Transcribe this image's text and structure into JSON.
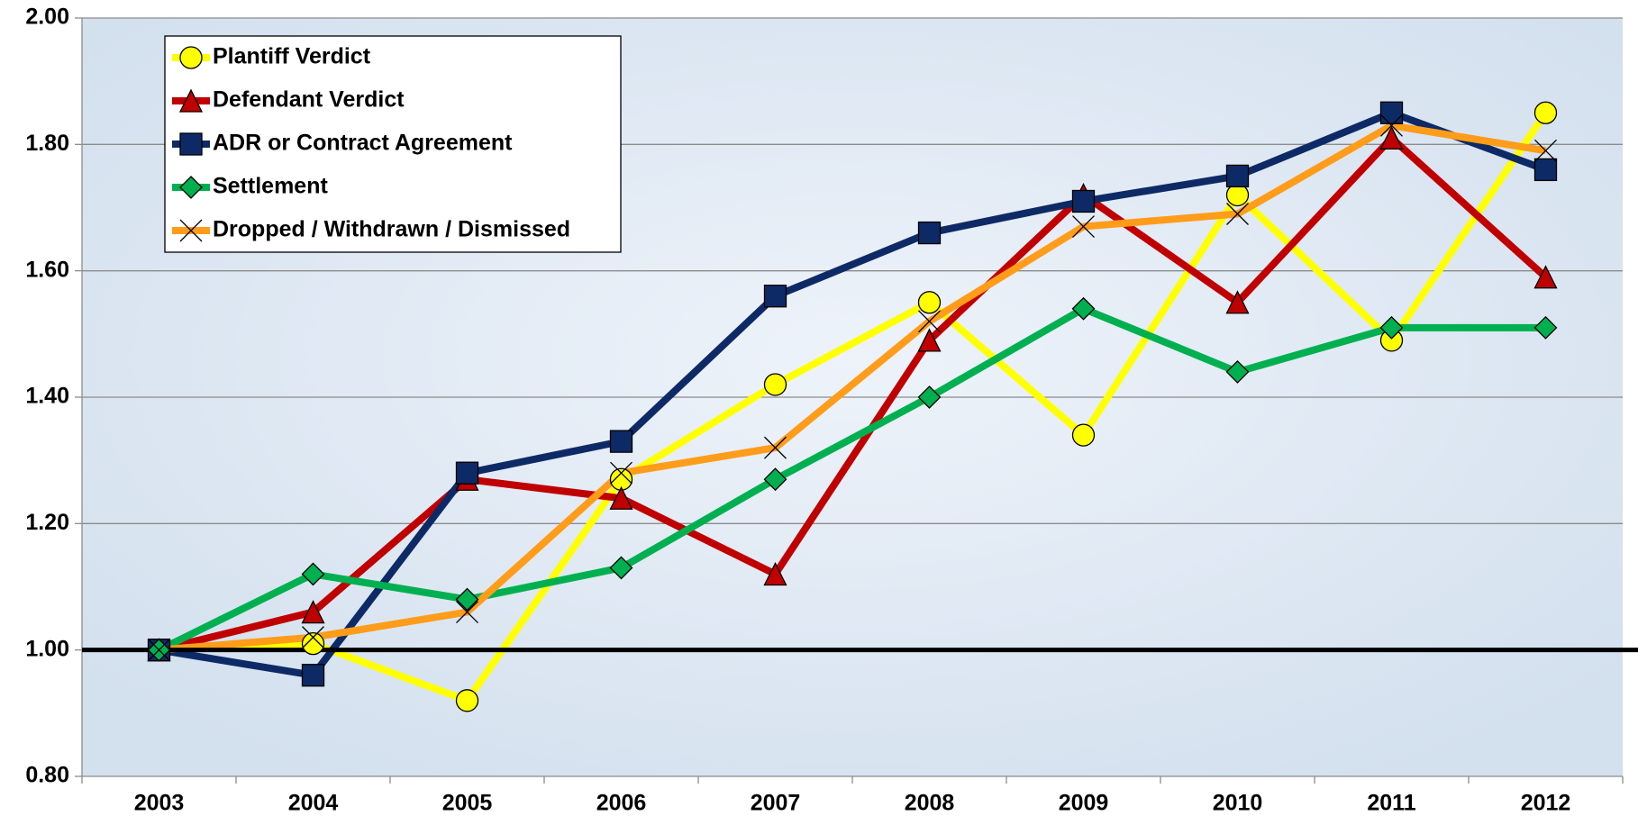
{
  "chart_data": {
    "type": "line",
    "categories": [
      "2003",
      "2004",
      "2005",
      "2006",
      "2007",
      "2008",
      "2009",
      "2010",
      "2011",
      "2012"
    ],
    "series": [
      {
        "name": "Plantiff Verdict",
        "color": "#ffff00",
        "marker": "circle",
        "values": [
          1.0,
          1.01,
          0.92,
          1.27,
          1.42,
          1.55,
          1.34,
          1.72,
          1.49,
          1.85
        ]
      },
      {
        "name": "Defendant Verdict",
        "color": "#c00000",
        "marker": "triangle",
        "values": [
          1.0,
          1.06,
          1.27,
          1.24,
          1.12,
          1.49,
          1.72,
          1.55,
          1.81,
          1.59
        ]
      },
      {
        "name": "ADR or Contract Agreement",
        "color": "#0e2a66",
        "marker": "square",
        "values": [
          1.0,
          0.96,
          1.28,
          1.33,
          1.56,
          1.66,
          1.71,
          1.75,
          1.85,
          1.76
        ]
      },
      {
        "name": "Settlement",
        "color": "#00b050",
        "marker": "diamond",
        "values": [
          1.0,
          1.12,
          1.08,
          1.13,
          1.27,
          1.4,
          1.54,
          1.44,
          1.51,
          1.51
        ]
      },
      {
        "name": "Dropped / Withdrawn / Dismissed",
        "color": "#ff9c1a",
        "marker": "x",
        "values": [
          1.0,
          1.02,
          1.06,
          1.28,
          1.32,
          1.52,
          1.67,
          1.69,
          1.83,
          1.79
        ]
      }
    ],
    "ylim": [
      0.8,
      2.0
    ],
    "yticks": [
      {
        "value": 0.8,
        "label": "0.80"
      },
      {
        "value": 1.0,
        "label": "1.00"
      },
      {
        "value": 1.2,
        "label": "1.20"
      },
      {
        "value": 1.4,
        "label": "1.40"
      },
      {
        "value": 1.6,
        "label": "1.60"
      },
      {
        "value": 1.8,
        "label": "1.80"
      },
      {
        "value": 2.0,
        "label": "2.00"
      }
    ],
    "reference_line": 1.0,
    "grid": true,
    "legend": "upper left"
  }
}
